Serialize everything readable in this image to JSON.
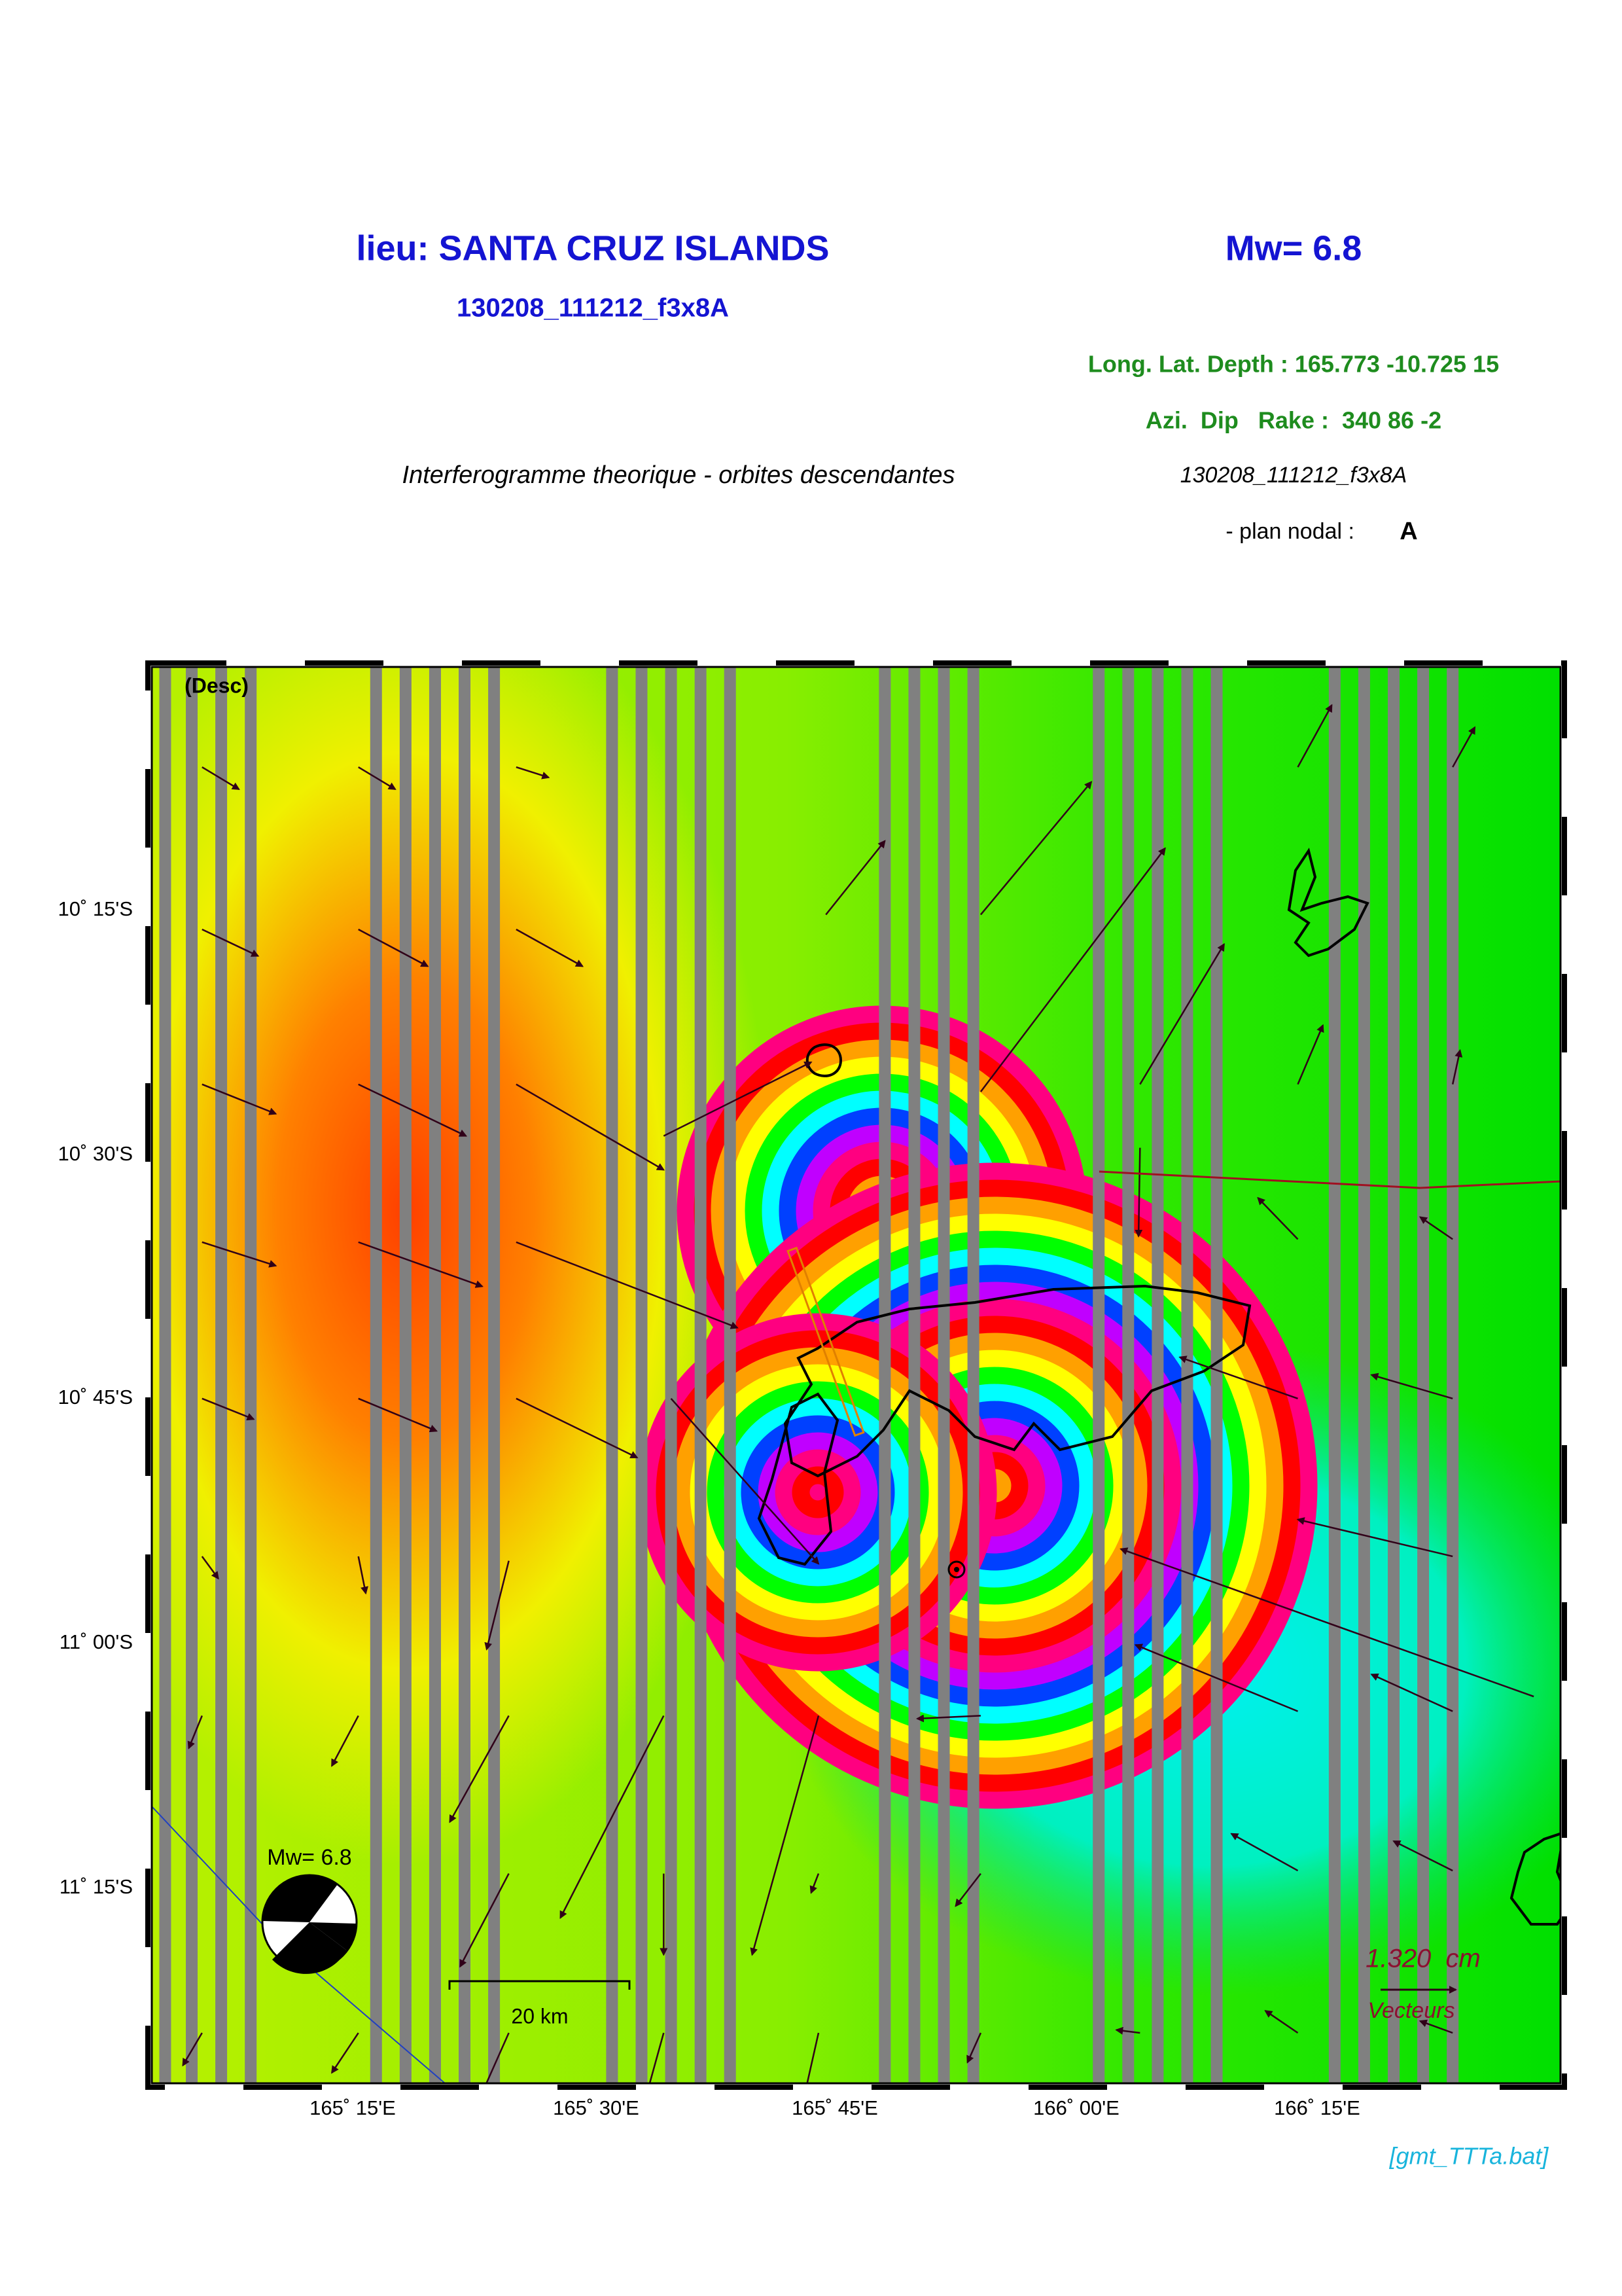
{
  "header": {
    "location": "lieu: SANTA CRUZ ISLANDS",
    "magnitude": "Mw= 6.8",
    "event_id": "130208_111212_f3x8A",
    "location_params": "Long. Lat. Depth : 165.773 -10.725 15",
    "mechanism": "Azi.  Dip   Rake :  340 86 -2",
    "subtitle": "Interferogramme theorique - orbites descendantes",
    "event_id_italic": "130208_111212_f3x8A",
    "nodal_plane_label": "- plan nodal :",
    "nodal_plane": "A"
  },
  "map": {
    "orbit": "(Desc)",
    "lat_labels": [
      "10˚ 15'S",
      "10˚ 30'S",
      "10˚ 45'S",
      "11˚ 00'S",
      "11˚ 15'S"
    ],
    "lon_labels": [
      "165˚ 15'E",
      "165˚ 30'E",
      "165˚ 45'E",
      "166˚ 00'E",
      "166˚ 15'E"
    ],
    "beachball_label": "Mw= 6.8",
    "scale_bar": "20 km",
    "vector_scale": "1.320  cm",
    "vector_label": "Vecteurs"
  },
  "footer": "[gmt_TTTa.bat]"
}
